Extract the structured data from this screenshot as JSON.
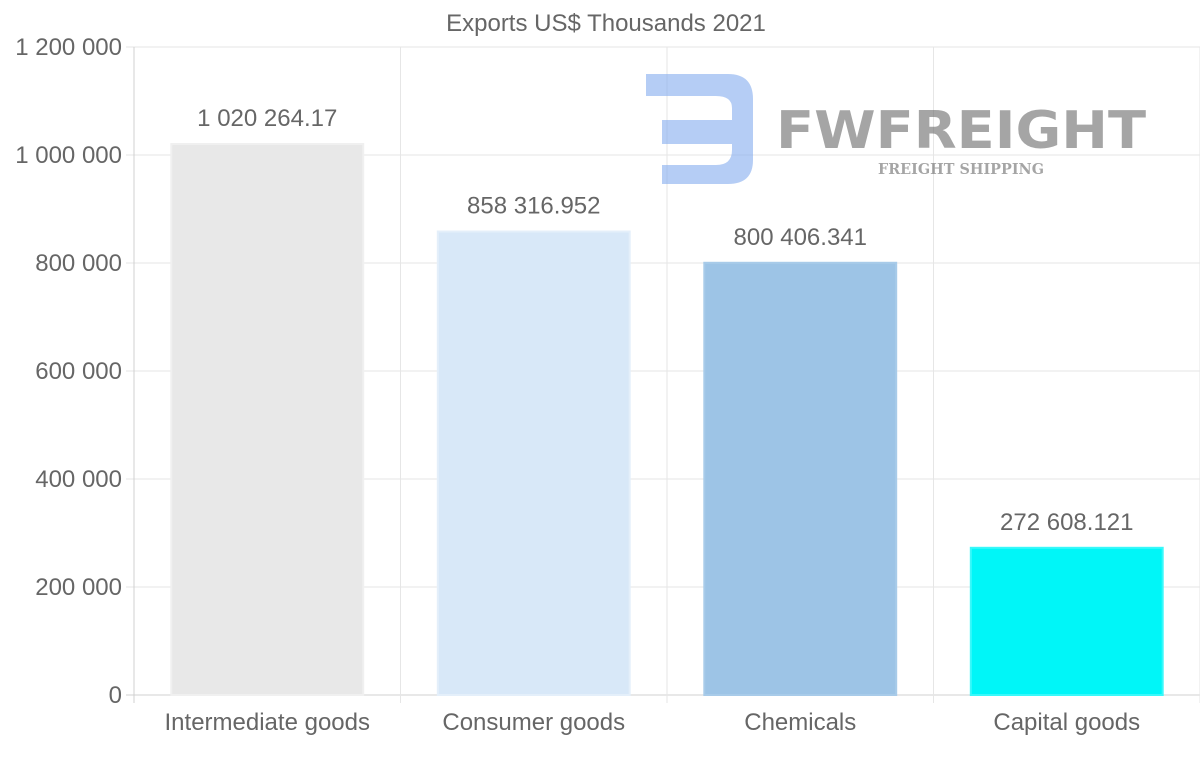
{
  "chart_data": {
    "type": "bar",
    "title": "Exports US$ Thousands 2021",
    "categories": [
      "Intermediate goods",
      "Consumer goods",
      "Chemicals",
      "Capital goods"
    ],
    "values": [
      1020264.17,
      858316.952,
      800406.341,
      272608.121
    ],
    "value_labels": [
      "1 020 264.17",
      "858 316.952",
      "800 406.341",
      "272 608.121"
    ],
    "colors": [
      "#e8e8e8",
      "#d8e8f8",
      "#9dc4e6",
      "#00f6f8"
    ],
    "border_colors": [
      "#f0f0f0",
      "#e4effa",
      "#a8cbe9",
      "#39f8fa"
    ],
    "ylim": [
      0,
      1200000
    ],
    "y_ticks": [
      0,
      200000,
      400000,
      600000,
      800000,
      1000000,
      1200000
    ],
    "y_tick_labels": [
      "0",
      "200 000",
      "400 000",
      "600 000",
      "800 000",
      "1 000 000",
      "1 200 000"
    ],
    "xlabel": "",
    "ylabel": "",
    "grid": true,
    "legend": "none"
  },
  "watermark": {
    "brand": "FWFREIGHT",
    "tagline": "FREIGHT SHIPPING",
    "color": "#7fa8ee"
  }
}
